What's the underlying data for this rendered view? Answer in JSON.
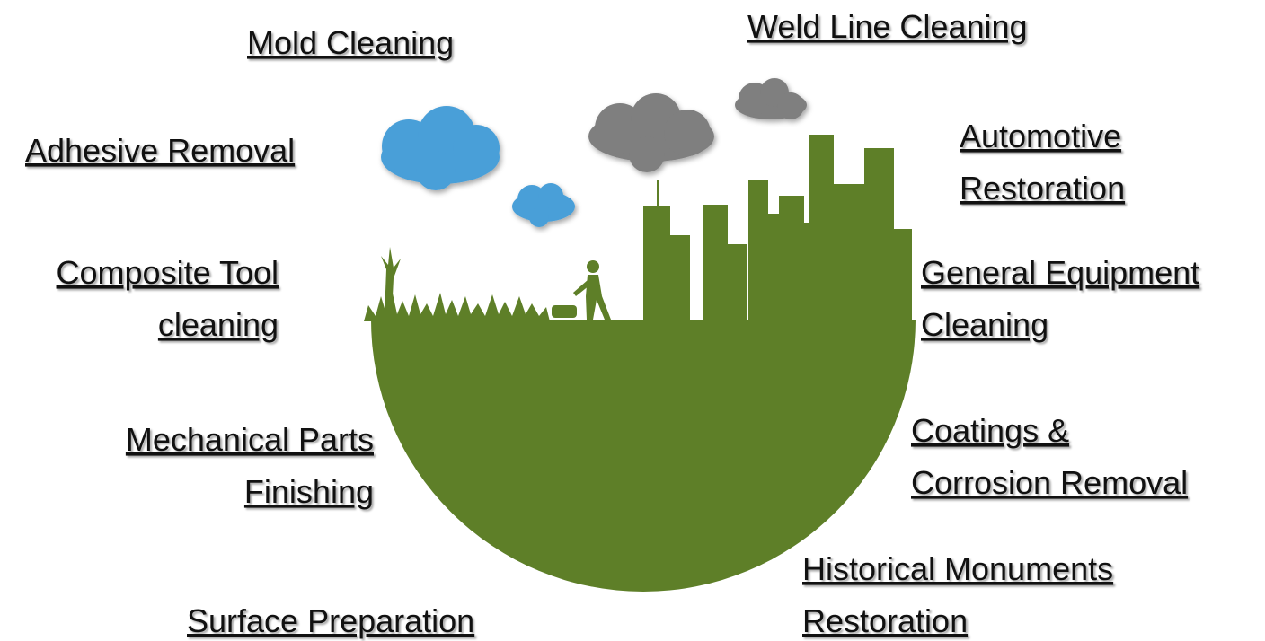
{
  "labels": [
    {
      "lines": [
        "Mold Cleaning"
      ]
    },
    {
      "lines": [
        "Weld Line Cleaning"
      ]
    },
    {
      "lines": [
        "Adhesive Removal"
      ]
    },
    {
      "lines": [
        "Automotive",
        "Restoration"
      ]
    },
    {
      "lines": [
        "Composite Tool",
        "cleaning"
      ]
    },
    {
      "lines": [
        "General Equipment",
        "Cleaning"
      ]
    },
    {
      "lines": [
        "Mechanical Parts",
        "Finishing"
      ]
    },
    {
      "lines": [
        "Coatings &",
        "Corrosion Removal"
      ]
    },
    {
      "lines": [
        "Historical Monuments",
        "Restoration"
      ]
    },
    {
      "lines": [
        "Surface Preparation"
      ]
    }
  ]
}
